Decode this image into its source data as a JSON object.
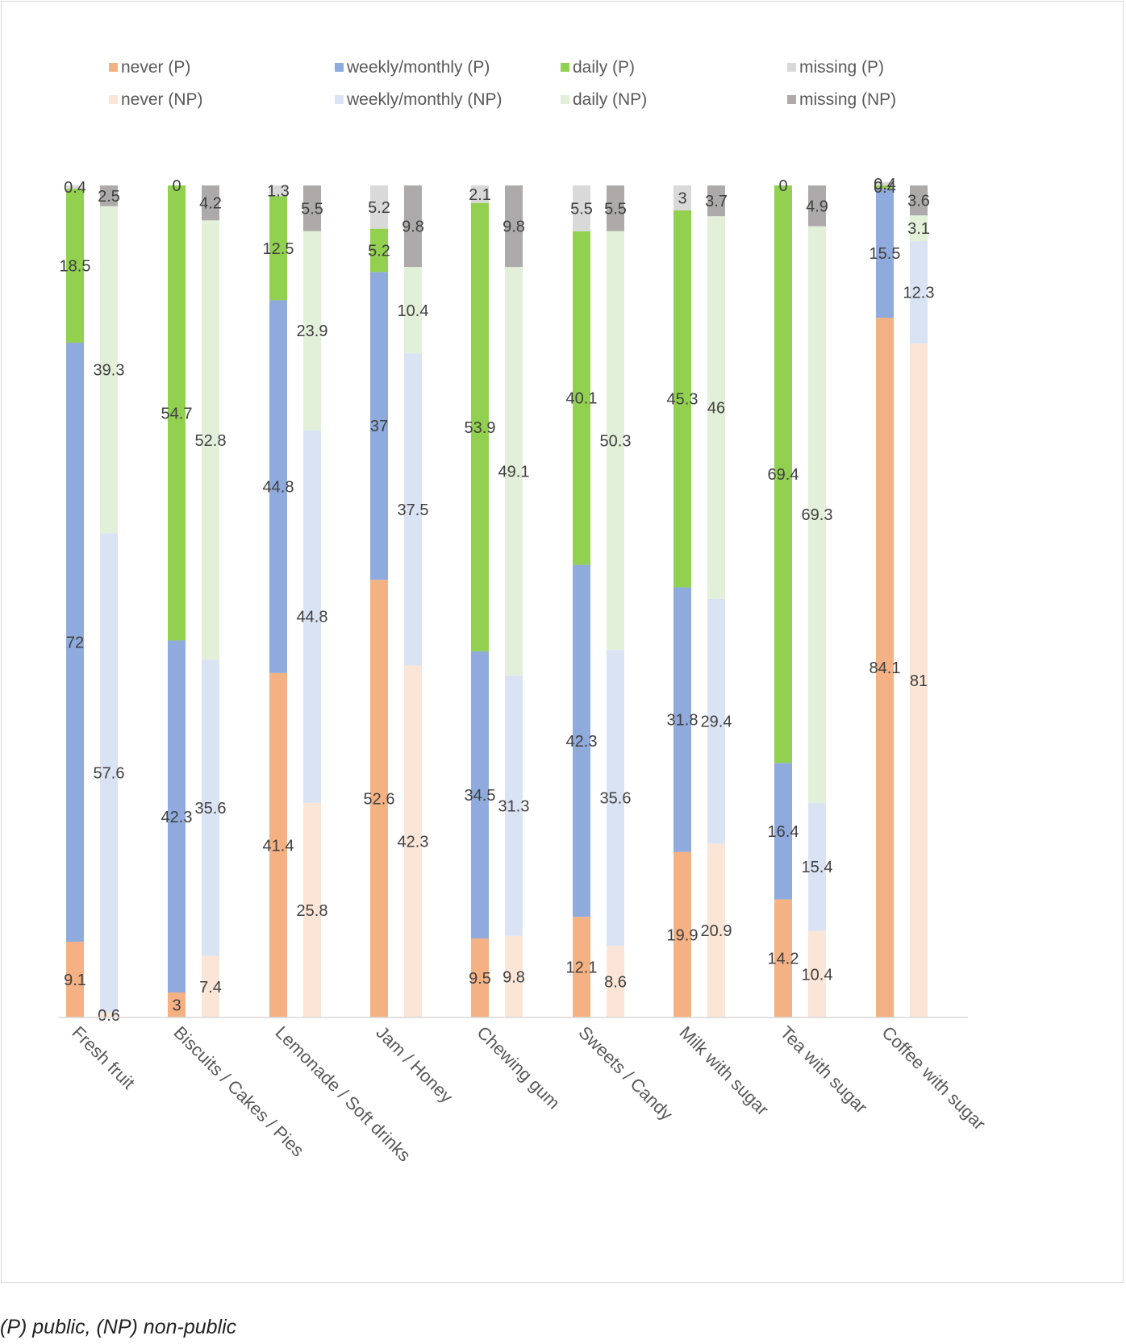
{
  "chart_data": {
    "type": "bar",
    "stacked": true,
    "grouped": true,
    "orientation": "vertical",
    "ylim": [
      0,
      100
    ],
    "grid": false,
    "legend_position": "top",
    "categories": [
      "Fresh fruit",
      "Biscuits / Cakes / Pies",
      "Lemonade / Soft drinks",
      "Jam / Honey",
      "Chewing gum",
      "Sweets / Candy",
      "Milk with sugar",
      "Tea with sugar",
      "Coffee with sugar"
    ],
    "groups": [
      "P",
      "NP"
    ],
    "series": [
      {
        "name": "never (P)",
        "group": "P",
        "color": "#f4b183",
        "values": [
          9.1,
          3,
          41.4,
          52.6,
          9.5,
          12.1,
          19.9,
          14.2,
          84.1
        ]
      },
      {
        "name": "weekly/monthly (P)",
        "group": "P",
        "color": "#8faadc",
        "values": [
          72,
          42.3,
          44.8,
          37,
          34.5,
          42.3,
          31.8,
          16.4,
          15.5
        ]
      },
      {
        "name": "daily (P)",
        "group": "P",
        "color": "#92d050",
        "values": [
          18.5,
          54.7,
          12.5,
          5.2,
          53.9,
          40.1,
          45.3,
          69.4,
          0.4
        ]
      },
      {
        "name": "missing (P)",
        "group": "P",
        "color": "#d9d9d9",
        "values": [
          0.4,
          0,
          1.3,
          5.2,
          2.1,
          5.5,
          3,
          0,
          0.4
        ]
      },
      {
        "name": "never (NP)",
        "group": "NP",
        "color": "#fbe5d6",
        "values": [
          0.6,
          7.4,
          25.8,
          42.3,
          9.8,
          8.6,
          20.9,
          10.4,
          81
        ]
      },
      {
        "name": "weekly/monthly (NP)",
        "group": "NP",
        "color": "#dae3f3",
        "values": [
          57.6,
          35.6,
          44.8,
          37.5,
          31.3,
          35.6,
          29.4,
          15.4,
          12.3
        ]
      },
      {
        "name": "daily (NP)",
        "group": "NP",
        "color": "#e2f0d9",
        "values": [
          39.3,
          52.8,
          23.9,
          10.4,
          49.1,
          50.3,
          46,
          69.3,
          3.1
        ]
      },
      {
        "name": "missing (NP)",
        "group": "NP",
        "color": "#aeaaaa",
        "values": [
          2.5,
          4.2,
          5.5,
          9.8,
          9.8,
          5.5,
          3.7,
          4.9,
          3.6
        ]
      }
    ]
  },
  "footnote": "(P) public, (NP) non-public"
}
